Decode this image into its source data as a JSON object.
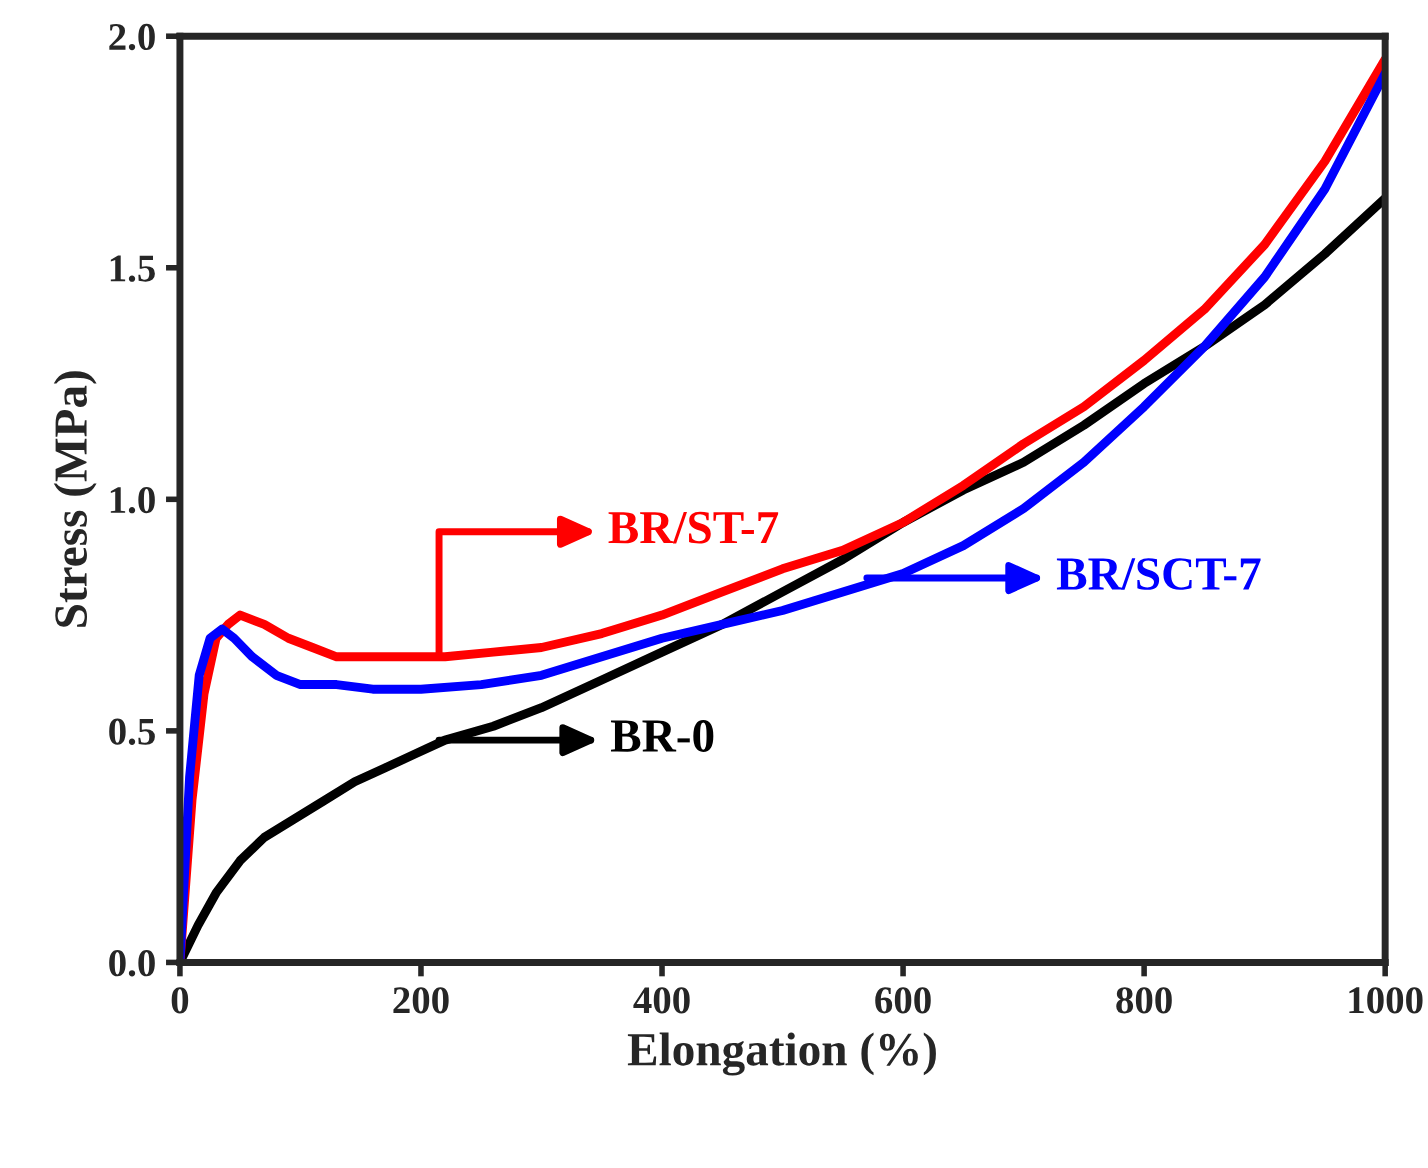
{
  "chart_data": {
    "type": "line",
    "xlabel": "Elongation (%)",
    "ylabel": "Stress (MPa)",
    "xlim": [
      0,
      1000
    ],
    "ylim": [
      0,
      2.0
    ],
    "xticks": [
      0,
      200,
      400,
      600,
      800,
      1000
    ],
    "yticks": [
      {
        "value": 0,
        "label": "0.0"
      },
      {
        "value": 0.5,
        "label": "0.5"
      },
      {
        "value": 1.0,
        "label": "1.0"
      },
      {
        "value": 1.5,
        "label": "1.5"
      },
      {
        "value": 2.0,
        "label": "2.0"
      }
    ],
    "grid": false,
    "legend": "center",
    "marker": "none",
    "line_style": "solid",
    "series": [
      {
        "name": "BR-0",
        "color": "#000000",
        "x": [
          0,
          15,
          30,
          50,
          70,
          95,
          120,
          145,
          170,
          195,
          220,
          260,
          300,
          350,
          400,
          450,
          500,
          550,
          600,
          650,
          700,
          750,
          800,
          850,
          900,
          950,
          1000
        ],
        "values": [
          0,
          0.08,
          0.15,
          0.22,
          0.27,
          0.31,
          0.35,
          0.39,
          0.42,
          0.45,
          0.48,
          0.51,
          0.55,
          0.61,
          0.67,
          0.73,
          0.8,
          0.87,
          0.95,
          1.02,
          1.08,
          1.16,
          1.25,
          1.33,
          1.42,
          1.53,
          1.65
        ]
      },
      {
        "name": "BR/ST-7",
        "color": "#ff0000",
        "x": [
          0,
          10,
          20,
          30,
          40,
          50,
          70,
          90,
          110,
          130,
          160,
          190,
          220,
          260,
          300,
          350,
          400,
          450,
          500,
          550,
          600,
          650,
          700,
          750,
          800,
          850,
          900,
          950,
          1000
        ],
        "values": [
          0,
          0.35,
          0.58,
          0.7,
          0.73,
          0.75,
          0.73,
          0.7,
          0.68,
          0.66,
          0.66,
          0.66,
          0.66,
          0.67,
          0.68,
          0.71,
          0.75,
          0.8,
          0.85,
          0.89,
          0.95,
          1.03,
          1.12,
          1.2,
          1.3,
          1.41,
          1.55,
          1.73,
          1.95
        ]
      },
      {
        "name": "BR/SCT-7",
        "color": "#0000ff",
        "x": [
          0,
          8,
          16,
          25,
          35,
          45,
          60,
          80,
          100,
          130,
          160,
          200,
          250,
          300,
          350,
          400,
          450,
          500,
          550,
          600,
          650,
          700,
          750,
          800,
          850,
          900,
          950,
          1000
        ],
        "values": [
          0,
          0.4,
          0.62,
          0.7,
          0.72,
          0.7,
          0.66,
          0.62,
          0.6,
          0.6,
          0.59,
          0.59,
          0.6,
          0.62,
          0.66,
          0.7,
          0.73,
          0.76,
          0.8,
          0.84,
          0.9,
          0.98,
          1.08,
          1.2,
          1.33,
          1.48,
          1.67,
          1.92
        ]
      }
    ]
  }
}
